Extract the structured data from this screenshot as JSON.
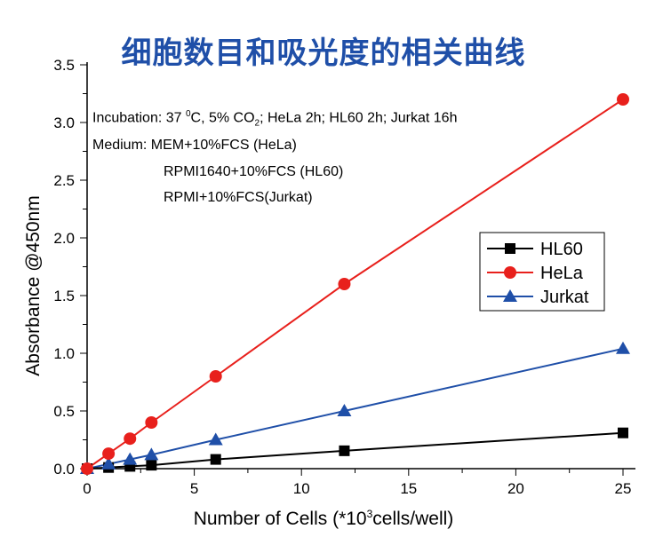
{
  "chart_data": {
    "type": "line",
    "title": "细胞数目和吸光度的相关曲线",
    "xlabel": {
      "pre": "Number of Cells (*10",
      "sup": "3",
      "post": "cells/well)"
    },
    "ylabel": "Absorbance   @450nm",
    "xlim": [
      0,
      26
    ],
    "ylim": [
      0,
      3.5
    ],
    "xticks": [
      0,
      5,
      10,
      15,
      20,
      25
    ],
    "yticks": [
      "0.0",
      "0.5",
      "1.0",
      "1.5",
      "2.0",
      "2.5",
      "3.0",
      "3.5"
    ],
    "grid": false,
    "legend_position": "right",
    "annotations": {
      "line1": {
        "a": "Incubation: 37 ",
        "sup": "0",
        "b": "C, 5% CO",
        "sub": "2",
        "c": "; HeLa 2h; HL60 2h; Jurkat 16h"
      },
      "line2": "Medium: MEM+10%FCS (HeLa)",
      "line3": "RPMI1640+10%FCS (HL60)",
      "line4": "RPMI+10%FCS(Jurkat)"
    },
    "x": [
      0,
      1,
      2,
      3,
      6,
      12,
      25
    ],
    "series": [
      {
        "name": "HL60",
        "color": "#000000",
        "marker": "square",
        "values": [
          0,
          0.01,
          0.02,
          0.03,
          0.08,
          0.155,
          0.31
        ]
      },
      {
        "name": "HeLa",
        "color": "#e8201c",
        "marker": "circle",
        "values": [
          0,
          0.13,
          0.26,
          0.4,
          0.8,
          1.6,
          3.2
        ]
      },
      {
        "name": "Jurkat",
        "color": "#1f4fa8",
        "marker": "triangle",
        "values": [
          0,
          0.04,
          0.08,
          0.12,
          0.25,
          0.5,
          1.04
        ]
      }
    ]
  }
}
